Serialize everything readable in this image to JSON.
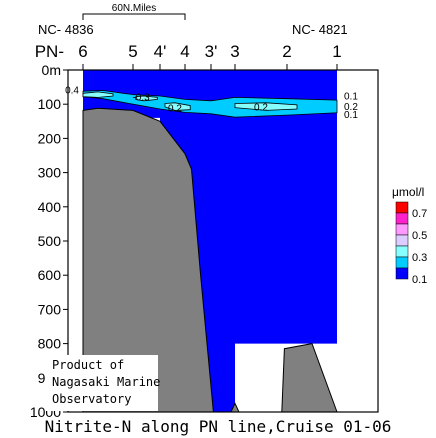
{
  "chart_data": {
    "type": "contour",
    "title": "Nitrite-N along PN line,Cruise 01-06",
    "scale_bar_label": "60N.Miles",
    "station_ids": {
      "left": "NC- 4836",
      "right": "NC- 4821"
    },
    "line_prefix": "PN-",
    "stations": [
      "6",
      "5",
      "4'",
      "4",
      "3'",
      "3",
      "2",
      "1"
    ],
    "y_axis": {
      "ticks": [
        "0m",
        "100",
        "200",
        "300",
        "400",
        "500",
        "600",
        "700",
        "800",
        "900",
        "1000"
      ],
      "range": [
        0,
        1000
      ],
      "inverted": true,
      "unit": "m"
    },
    "contour_levels": [
      0.1,
      0.2,
      0.3,
      0.4
    ],
    "contour_labels": [
      {
        "text": "0.4",
        "station_index": 0,
        "depth": 60,
        "side": "left"
      },
      {
        "text": "-0.3",
        "station_index": 1.3,
        "depth": 80
      },
      {
        "text": "0.2",
        "station_index": 2.6,
        "depth": 112
      },
      {
        "text": "0.2",
        "station_index": 5.5,
        "depth": 110
      },
      {
        "text": "0.1",
        "station_index": 7,
        "depth": 78,
        "side": "right"
      },
      {
        "text": "0.2",
        "station_index": 7,
        "depth": 108,
        "side": "right"
      },
      {
        "text": "0.1",
        "station_index": 7,
        "depth": 132,
        "side": "right"
      }
    ],
    "legend": {
      "unit": "μmol/l",
      "levels": [
        "0.7",
        "0.5",
        "0.3",
        "0.1"
      ],
      "colors": [
        "#ff0000",
        "#ff22cc",
        "#ff99ff",
        "#ddccff",
        "#88ffff",
        "#00ccff",
        "#0000ff"
      ]
    },
    "cast_bottoms": [
      {
        "station": "6",
        "depth": 110
      },
      {
        "station": "5",
        "depth": 120
      },
      {
        "station": "4'",
        "depth": 140
      },
      {
        "station": "4",
        "depth": 255
      },
      {
        "station": "3'",
        "depth": 915
      },
      {
        "station": "3",
        "depth": 1000
      },
      {
        "station": "2",
        "depth": 800
      },
      {
        "station": "1",
        "depth": 800
      }
    ],
    "credit": [
      "Product of",
      "Nagasaki Marine",
      "Observatory"
    ]
  },
  "colors": {
    "water": "#0000ff",
    "band_mid": "#00ccff",
    "band_high": "#88ffff",
    "seafloor": "#808080"
  }
}
